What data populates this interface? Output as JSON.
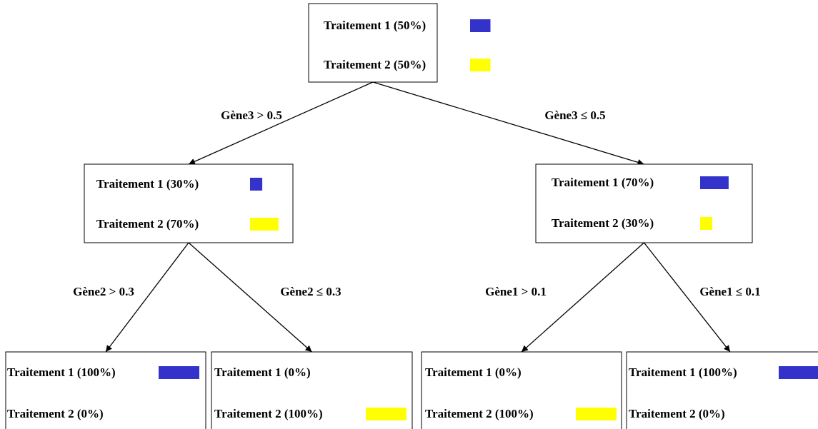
{
  "row_colors": [
    "#3333cc",
    "#ffff00"
  ],
  "tree": {
    "rows": [
      {
        "label": "Traitement 1 (50%)",
        "value": 50
      },
      {
        "label": "Traitement 2 (50%)",
        "value": 50
      }
    ],
    "children": [
      {
        "condition": "Gène3 > 0.5",
        "node": {
          "rows": [
            {
              "label": "Traitement 1 (30%)",
              "value": 30
            },
            {
              "label": "Traitement 2 (70%)",
              "value": 70
            }
          ],
          "children": [
            {
              "condition": "Gène2 > 0.3",
              "node": {
                "rows": [
                  {
                    "label": "Traitement 1 (100%)",
                    "value": 100
                  },
                  {
                    "label": "Traitement 2 (0%)",
                    "value": 0
                  }
                ]
              }
            },
            {
              "condition": "Gène2 ≤ 0.3",
              "node": {
                "rows": [
                  {
                    "label": "Traitement 1 (0%)",
                    "value": 0
                  },
                  {
                    "label": "Traitement 2 (100%)",
                    "value": 100
                  }
                ]
              }
            }
          ]
        }
      },
      {
        "condition": "Gène3 ≤ 0.5",
        "node": {
          "rows": [
            {
              "label": "Traitement 1 (70%)",
              "value": 70
            },
            {
              "label": "Traitement 2 (30%)",
              "value": 30
            }
          ],
          "children": [
            {
              "condition": "Gène1 > 0.1",
              "node": {
                "rows": [
                  {
                    "label": "Traitement 1 (0%)",
                    "value": 0
                  },
                  {
                    "label": "Traitement 2 (100%)",
                    "value": 100
                  }
                ]
              }
            },
            {
              "condition": "Gène1 ≤ 0.1",
              "node": {
                "rows": [
                  {
                    "label": "Traitement 1 (100%)",
                    "value": 100
                  },
                  {
                    "label": "Traitement 2 (0%)",
                    "value": 0
                  }
                ]
              }
            }
          ]
        }
      }
    ]
  }
}
